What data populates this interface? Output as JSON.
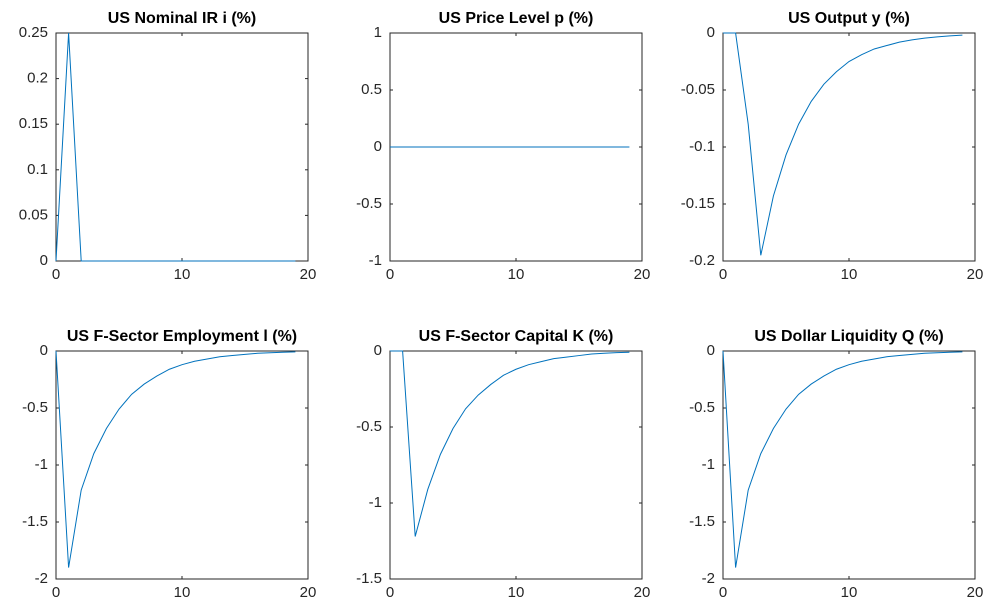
{
  "chart_data": [
    {
      "type": "line",
      "title": "US Nominal IR i (%)",
      "x": [
        0,
        1,
        2,
        3,
        4,
        5,
        6,
        7,
        8,
        9,
        10,
        11,
        12,
        13,
        14,
        15,
        16,
        17,
        18,
        19
      ],
      "values": [
        0,
        0.25,
        0,
        0,
        0,
        0,
        0,
        0,
        0,
        0,
        0,
        0,
        0,
        0,
        0,
        0,
        0,
        0,
        0,
        0
      ],
      "color": "#0072bd",
      "xlim": [
        0,
        20
      ],
      "xticks": [
        0,
        10,
        20
      ],
      "ylim": [
        0,
        0.25
      ],
      "yticks": [
        0,
        0.05,
        0.1,
        0.15,
        0.2,
        0.25
      ]
    },
    {
      "type": "line",
      "title": "US Price Level p (%)",
      "x": [
        0,
        1,
        2,
        3,
        4,
        5,
        6,
        7,
        8,
        9,
        10,
        11,
        12,
        13,
        14,
        15,
        16,
        17,
        18,
        19
      ],
      "values": [
        0,
        0,
        0,
        0,
        0,
        0,
        0,
        0,
        0,
        0,
        0,
        0,
        0,
        0,
        0,
        0,
        0,
        0,
        0,
        0
      ],
      "color": "#0072bd",
      "xlim": [
        0,
        20
      ],
      "xticks": [
        0,
        10,
        20
      ],
      "ylim": [
        -1,
        1
      ],
      "yticks": [
        -1,
        -0.5,
        0,
        0.5,
        1
      ]
    },
    {
      "type": "line",
      "title": "US Output y (%)",
      "x": [
        0,
        1,
        2,
        3,
        4,
        5,
        6,
        7,
        8,
        9,
        10,
        11,
        12,
        13,
        14,
        15,
        16,
        17,
        18,
        19
      ],
      "values": [
        0,
        0,
        -0.08,
        -0.195,
        -0.143,
        -0.107,
        -0.08,
        -0.06,
        -0.045,
        -0.034,
        -0.025,
        -0.019,
        -0.014,
        -0.011,
        -0.008,
        -0.006,
        -0.0045,
        -0.0034,
        -0.0025,
        -0.0019
      ],
      "color": "#0072bd",
      "xlim": [
        0,
        20
      ],
      "xticks": [
        0,
        10,
        20
      ],
      "ylim": [
        -0.2,
        0
      ],
      "yticks": [
        -0.2,
        -0.15,
        -0.1,
        -0.05,
        0
      ]
    },
    {
      "type": "line",
      "title": "US F-Sector Employment l (%)",
      "x": [
        0,
        1,
        2,
        3,
        4,
        5,
        6,
        7,
        8,
        9,
        10,
        11,
        12,
        13,
        14,
        15,
        16,
        17,
        18,
        19
      ],
      "values": [
        0,
        -1.9,
        -1.22,
        -0.9,
        -0.68,
        -0.51,
        -0.38,
        -0.29,
        -0.22,
        -0.16,
        -0.12,
        -0.09,
        -0.07,
        -0.05,
        -0.04,
        -0.03,
        -0.02,
        -0.015,
        -0.011,
        -0.008
      ],
      "color": "#0072bd",
      "xlim": [
        0,
        20
      ],
      "xticks": [
        0,
        10,
        20
      ],
      "ylim": [
        -2,
        0
      ],
      "yticks": [
        -2,
        -1.5,
        -1,
        -0.5,
        0
      ]
    },
    {
      "type": "line",
      "title": "US F-Sector Capital K (%)",
      "x": [
        0,
        1,
        2,
        3,
        4,
        5,
        6,
        7,
        8,
        9,
        10,
        11,
        12,
        13,
        14,
        15,
        16,
        17,
        18,
        19
      ],
      "values": [
        0,
        0,
        -1.22,
        -0.91,
        -0.68,
        -0.51,
        -0.38,
        -0.29,
        -0.22,
        -0.16,
        -0.12,
        -0.09,
        -0.07,
        -0.05,
        -0.04,
        -0.03,
        -0.02,
        -0.015,
        -0.011,
        -0.008
      ],
      "color": "#0072bd",
      "xlim": [
        0,
        20
      ],
      "xticks": [
        0,
        10,
        20
      ],
      "ylim": [
        -1.5,
        0
      ],
      "yticks": [
        -1.5,
        -1,
        -0.5,
        0
      ]
    },
    {
      "type": "line",
      "title": "US Dollar Liquidity Q (%)",
      "x": [
        0,
        1,
        2,
        3,
        4,
        5,
        6,
        7,
        8,
        9,
        10,
        11,
        12,
        13,
        14,
        15,
        16,
        17,
        18,
        19
      ],
      "values": [
        0,
        -1.9,
        -1.22,
        -0.9,
        -0.68,
        -0.51,
        -0.38,
        -0.29,
        -0.22,
        -0.16,
        -0.12,
        -0.09,
        -0.07,
        -0.05,
        -0.04,
        -0.03,
        -0.02,
        -0.015,
        -0.011,
        -0.008
      ],
      "color": "#0072bd",
      "xlim": [
        0,
        20
      ],
      "xticks": [
        0,
        10,
        20
      ],
      "ylim": [
        -2,
        0
      ],
      "yticks": [
        -2,
        -1.5,
        -1,
        -0.5,
        0
      ]
    }
  ]
}
